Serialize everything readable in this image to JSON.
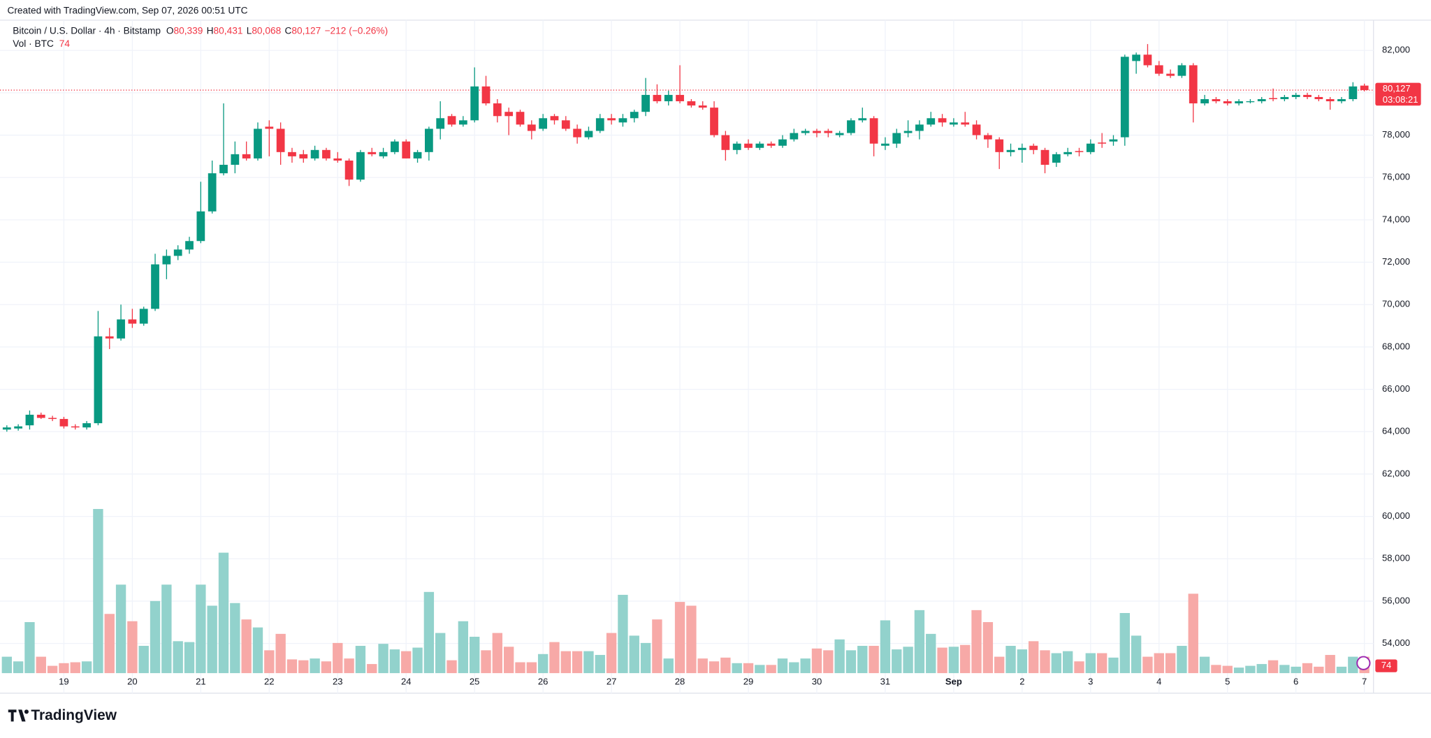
{
  "created": "Created with TradingView.com, Sep 07, 2026 00:51 UTC",
  "brand": "TradingView",
  "chart_data": {
    "type": "candlestick",
    "legend": {
      "symbol": "Bitcoin / U.S. Dollar · 4h · Bitstamp",
      "open_label": "O",
      "open": "80,339",
      "high_label": "H",
      "high": "80,431",
      "low_label": "L",
      "low": "80,068",
      "close_label": "C",
      "close": "80,127",
      "change": "−212 (−0.26%)",
      "volume_name": "Vol · BTC",
      "volume": "74"
    },
    "price_label": "80,127",
    "countdown": "03:08:21",
    "volume_label": "74",
    "up_color": "#089981",
    "down_color": "#f23645",
    "up_volume_color": "#92d2cc",
    "down_volume_color": "#f7a9a7",
    "ylim": [
      52600,
      83600
    ],
    "yticks": [
      {
        "value": 54000,
        "label": "54,000"
      },
      {
        "value": 56000,
        "label": "56,000"
      },
      {
        "value": 58000,
        "label": "58,000"
      },
      {
        "value": 60000,
        "label": "60,000"
      },
      {
        "value": 62000,
        "label": "62,000"
      },
      {
        "value": 64000,
        "label": "64,000"
      },
      {
        "value": 66000,
        "label": "66,000"
      },
      {
        "value": 68000,
        "label": "68,000"
      },
      {
        "value": 70000,
        "label": "70,000"
      },
      {
        "value": 72000,
        "label": "72,000"
      },
      {
        "value": 74000,
        "label": "74,000"
      },
      {
        "value": 76000,
        "label": "76,000"
      },
      {
        "value": 78000,
        "label": "78,000"
      },
      {
        "value": 80000,
        "label": "80,000"
      },
      {
        "value": 82000,
        "label": "82,000"
      }
    ],
    "xticks": [
      {
        "value": 5,
        "label": "19"
      },
      {
        "value": 11,
        "label": "20"
      },
      {
        "value": 17,
        "label": "21"
      },
      {
        "value": 23,
        "label": "22"
      },
      {
        "value": 29,
        "label": "23"
      },
      {
        "value": 35,
        "label": "24"
      },
      {
        "value": 41,
        "label": "25"
      },
      {
        "value": 47,
        "label": "26"
      },
      {
        "value": 53,
        "label": "27"
      },
      {
        "value": 59,
        "label": "28"
      },
      {
        "value": 65,
        "label": "29"
      },
      {
        "value": 71,
        "label": "30"
      },
      {
        "value": 77,
        "label": "31"
      },
      {
        "value": 83,
        "label": "Sep"
      },
      {
        "value": 89,
        "label": "2"
      },
      {
        "value": 95,
        "label": "3"
      },
      {
        "value": 101,
        "label": "4"
      },
      {
        "value": 107,
        "label": "5"
      },
      {
        "value": 113,
        "label": "6"
      },
      {
        "value": 119,
        "label": "7"
      }
    ],
    "open": [
      64100,
      64150,
      64300,
      64800,
      64650,
      64600,
      64250,
      64200,
      64400,
      68500,
      68400,
      69300,
      69100,
      69800,
      71900,
      72300,
      72600,
      73000,
      74400,
      76200,
      76600,
      77100,
      76900,
      78400,
      78300,
      77200,
      77100,
      76900,
      77300,
      76900,
      76800,
      75900,
      77200,
      77000,
      77200,
      77700,
      76900,
      77200,
      78300,
      78900,
      78500,
      78700,
      80300,
      79500,
      79100,
      79100,
      78500,
      78300,
      78900,
      78700,
      78300,
      77900,
      78200,
      78800,
      78600,
      78800,
      79100,
      79900,
      79600,
      79900,
      79600,
      79400,
      79300,
      78000,
      77300,
      77600,
      77400,
      77600,
      77500,
      77800,
      78100,
      78200,
      78200,
      78000,
      78100,
      78700,
      78800,
      77500,
      77600,
      78100,
      78200,
      78500,
      78800,
      78500,
      78600,
      78500,
      78000,
      77800,
      77200,
      77300,
      77500,
      77300,
      76700,
      77100,
      77250,
      77200,
      77650,
      77700,
      77900,
      81500,
      81800,
      81300,
      80900,
      80800,
      81300,
      79500,
      79700,
      79600,
      79500,
      79600,
      79600,
      79750,
      79700,
      79800,
      79900,
      79800,
      79700,
      79600,
      79700,
      80339
    ],
    "high": [
      64300,
      64350,
      65000,
      64900,
      64750,
      64700,
      64350,
      64500,
      69700,
      68900,
      70000,
      69800,
      69900,
      72400,
      72600,
      72800,
      73200,
      75800,
      76800,
      79500,
      77700,
      77700,
      78600,
      78700,
      78600,
      77400,
      77300,
      77500,
      77400,
      77200,
      76900,
      77300,
      77400,
      77400,
      77800,
      77800,
      77300,
      78400,
      79600,
      79000,
      78900,
      81200,
      80800,
      79700,
      79300,
      79200,
      78700,
      79000,
      79000,
      78900,
      78500,
      78400,
      79000,
      79000,
      79000,
      79200,
      80700,
      80400,
      80100,
      81300,
      79700,
      79600,
      79600,
      78200,
      77700,
      77800,
      77700,
      77700,
      78000,
      78300,
      78300,
      78300,
      78300,
      78200,
      78800,
      79300,
      78900,
      77900,
      78300,
      78700,
      78700,
      79100,
      79000,
      78800,
      79100,
      78700,
      78100,
      77900,
      77600,
      77600,
      77600,
      77400,
      77200,
      77400,
      77400,
      77800,
      78100,
      78000,
      81800,
      81900,
      82300,
      81500,
      81100,
      81400,
      81400,
      79900,
      79800,
      79700,
      79700,
      79700,
      79800,
      80200,
      79900,
      80000,
      80000,
      79900,
      79800,
      79800,
      80500,
      80431
    ],
    "low": [
      64000,
      64050,
      64100,
      64600,
      64500,
      64150,
      64100,
      64100,
      64300,
      67900,
      68300,
      68900,
      69000,
      69700,
      71200,
      72100,
      72400,
      72900,
      74300,
      76100,
      76200,
      76800,
      76800,
      77000,
      76600,
      76700,
      76700,
      76800,
      76800,
      76700,
      75600,
      75800,
      77000,
      76900,
      77100,
      76900,
      76700,
      76800,
      77800,
      78400,
      78400,
      78600,
      79400,
      78600,
      78000,
      78400,
      77800,
      78200,
      78500,
      78200,
      77600,
      77800,
      78100,
      78500,
      78400,
      78600,
      78900,
      79500,
      79400,
      79500,
      79300,
      79200,
      77900,
      76800,
      77100,
      77300,
      77300,
      77400,
      77400,
      77700,
      78000,
      77900,
      77900,
      77900,
      78000,
      78600,
      77000,
      77300,
      77400,
      77900,
      77800,
      78400,
      78400,
      78400,
      78400,
      77800,
      77400,
      76400,
      77000,
      76700,
      77100,
      76200,
      76500,
      77000,
      77000,
      77100,
      77400,
      77500,
      77500,
      80900,
      81200,
      80800,
      80700,
      80700,
      78600,
      79400,
      79500,
      79400,
      79400,
      79500,
      79500,
      79600,
      79600,
      79700,
      79700,
      79600,
      79200,
      79500,
      79600,
      80068
    ],
    "close": [
      64200,
      64250,
      64800,
      64650,
      64600,
      64250,
      64200,
      64400,
      68500,
      68400,
      69300,
      69100,
      69800,
      71900,
      72300,
      72600,
      73000,
      74400,
      76200,
      76600,
      77100,
      76900,
      78300,
      78300,
      77200,
      77000,
      76900,
      77300,
      76900,
      76800,
      75900,
      77200,
      77100,
      77200,
      77700,
      76900,
      77200,
      78300,
      78800,
      78500,
      78700,
      80300,
      79500,
      78900,
      78900,
      78500,
      78200,
      78800,
      78700,
      78300,
      77900,
      78200,
      78800,
      78700,
      78800,
      79100,
      79900,
      79600,
      79900,
      79600,
      79400,
      79300,
      78000,
      77300,
      77600,
      77400,
      77600,
      77500,
      77800,
      78100,
      78200,
      78100,
      78100,
      78100,
      78700,
      78800,
      77600,
      77600,
      78100,
      78200,
      78500,
      78800,
      78600,
      78600,
      78500,
      78000,
      77800,
      77200,
      77300,
      77400,
      77300,
      76600,
      77100,
      77200,
      77200,
      77600,
      77600,
      77800,
      81700,
      81800,
      81300,
      80900,
      80800,
      81300,
      79500,
      79700,
      79600,
      79500,
      79600,
      79600,
      79700,
      79700,
      79800,
      79900,
      79800,
      79700,
      79600,
      79700,
      80300,
      80127
    ],
    "volume": [
      74,
      53,
      230,
      74,
      33,
      45,
      49,
      53,
      740,
      267,
      399,
      234,
      123,
      325,
      399,
      144,
      140,
      399,
      304,
      543,
      316,
      242,
      206,
      103,
      177,
      62,
      58,
      66,
      53,
      136,
      66,
      123,
      41,
      132,
      107,
      99,
      115,
      366,
      181,
      58,
      234,
      164,
      103,
      181,
      119,
      49,
      49,
      86,
      140,
      99,
      99,
      99,
      82,
      181,
      353,
      169,
      136,
      242,
      66,
      321,
      304,
      66,
      53,
      70,
      45,
      45,
      37,
      37,
      66,
      49,
      66,
      111,
      103,
      152,
      103,
      123,
      123,
      238,
      107,
      119,
      284,
      177,
      115,
      119,
      127,
      284,
      230,
      74,
      123,
      107,
      144,
      103,
      90,
      99,
      53,
      90,
      90,
      70,
      271,
      169,
      74,
      90,
      90,
      123,
      358,
      74,
      37,
      33,
      25,
      33,
      41,
      58,
      37,
      29,
      45,
      29,
      82,
      29,
      74,
      74
    ]
  }
}
